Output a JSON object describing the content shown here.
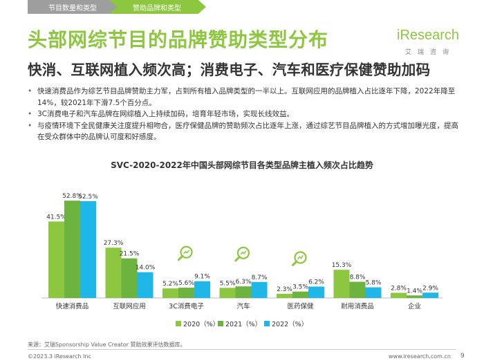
{
  "tabs": {
    "tab1": "节目数量和类型",
    "tab2": "赞助品牌和类型"
  },
  "title": "头部网综节目的品牌赞助类型分布",
  "subtitle": "快消、互联网植入频次高；消费电子、汽车和医疗保健赞助加码",
  "logo": {
    "brand": "iResearch",
    "cn": "艾瑞咨询"
  },
  "bullets": [
    "快速消费品作为综艺节目品牌赞助主力军，占到所有植入品牌类型的一半以上。互联网应用的品牌植入占比逐年下降，2022年降至14%，较2021年下滑7.5个百分点。",
    "3C消费电子和汽车品牌在网综植入上持续加码，培育年轻市场，实现长线效益。",
    "与疫情环境下全民健康关注度提升相吻合，医疗保健品牌的赞助频次占比逐年上涨，通过综艺节目品牌植入的方式增加曝光度，提高在受众群体中的品牌认可度和好感度。"
  ],
  "chart_data": {
    "type": "bar",
    "title": "SVC-2020-2022年中国头部网综节目各类型品牌主植入频次占比趋势",
    "categories": [
      "快速消费品",
      "互联网应用",
      "3C消费电子",
      "汽车",
      "医药保健",
      "耐用消费品",
      "企业"
    ],
    "series": [
      {
        "name": "2020（%）",
        "color": "#8dc63f",
        "values": [
          41.5,
          27.3,
          5.2,
          5.5,
          2.3,
          15.3,
          2.8
        ],
        "labels": [
          "41.5%",
          "27.3%",
          "5.2%",
          "5.5%",
          "2.3%",
          "15.3%",
          "2.8%"
        ]
      },
      {
        "name": "2021（%）",
        "color": "#6cb33f",
        "values": [
          52.8,
          21.5,
          5.6,
          6.3,
          3.5,
          8.8,
          1.4
        ],
        "labels": [
          "52.8%",
          "21.5%",
          "5.6%",
          "6.3%",
          "3.5%",
          "8.8%",
          "1.4%"
        ]
      },
      {
        "name": "2022（%）",
        "color": "#1fb6e8",
        "values": [
          52.5,
          14.0,
          9.1,
          8.7,
          6.2,
          5.8,
          2.9
        ],
        "labels": [
          "52.5%",
          "14.0%",
          "9.1%",
          "8.7%",
          "6.2%",
          "5.8%",
          "2.9%"
        ]
      }
    ],
    "highlighted_categories": [
      "3C消费电子",
      "汽车",
      "医药保健"
    ],
    "ylim": [
      0,
      60
    ],
    "legend": "bottom",
    "grid": false
  },
  "colors": {
    "accent_green": "#8dc63f",
    "bar_2020": "#8dc63f",
    "bar_2021": "#6cb33f",
    "bar_2022": "#1fb6e8",
    "magnifier": "#8dc63f"
  },
  "footer": {
    "source": "来源：艾瑞Sponsorship Value Creator 赞助效果评估数据库。",
    "copyright": "©2023.3 iResearch Inc",
    "website": "www.iresearch.com.cn",
    "page": "9"
  }
}
